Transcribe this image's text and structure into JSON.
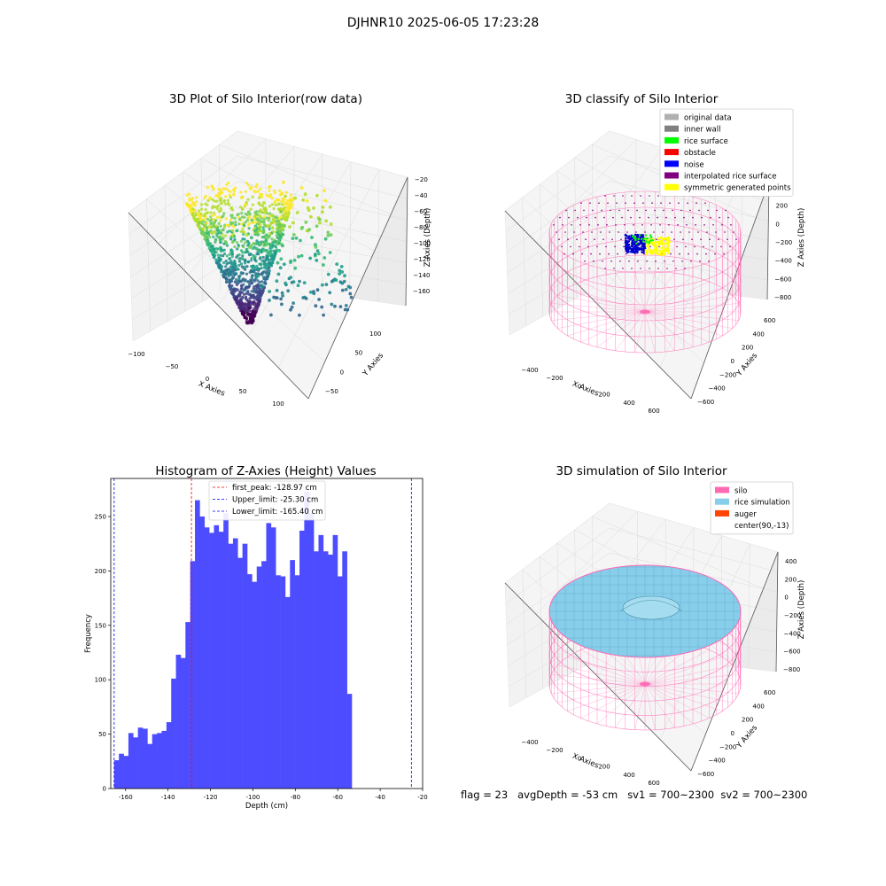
{
  "suptitle": "DJHNR10 2025-06-05 17:23:28",
  "footer": "flag = 23   avgDepth = -53 cm   sv1 = 700~2300  sv2 = 700~2300",
  "chart_data": [
    {
      "type": "scatter",
      "title": "3D Plot of Silo Interior(row data)",
      "xlabel": "X Axies",
      "ylabel": "Y Axies",
      "zlabel": "Z Axies (Depth)",
      "x_ticks": [
        "−100",
        "−50",
        "0",
        "50",
        "100"
      ],
      "y_ticks": [
        "−50",
        "0",
        "50",
        "100"
      ],
      "z_ticks": [
        "−20",
        "−40",
        "−60",
        "−80",
        "−100",
        "−120",
        "−140",
        "−160"
      ],
      "colormap": "viridis",
      "z_range": [
        -170,
        -20
      ]
    },
    {
      "type": "scatter",
      "title": "3D classify of Silo Interior",
      "xlabel": "X Axies",
      "ylabel": "Y Axies",
      "zlabel": "Z Axies (Depth)",
      "x_ticks": [
        "−400",
        "−200",
        "0",
        "200",
        "400",
        "600"
      ],
      "y_ticks": [
        "−600",
        "−400",
        "−200",
        "0",
        "200",
        "400",
        "600"
      ],
      "z_ticks": [
        "400",
        "200",
        "0",
        "−200",
        "−400",
        "−600",
        "−800"
      ],
      "legend": [
        {
          "label": "original data",
          "color": "#b0b0b0"
        },
        {
          "label": "inner wall",
          "color": "#808080"
        },
        {
          "label": "rice surface",
          "color": "#00ff00"
        },
        {
          "label": "obstacle",
          "color": "#ff0000"
        },
        {
          "label": "noise",
          "color": "#0000ff"
        },
        {
          "label": "interpolated rice surface",
          "color": "#800080"
        },
        {
          "label": "symmetric generated points",
          "color": "#ffff00"
        }
      ],
      "legend_loc": "upper right"
    },
    {
      "type": "bar",
      "title": "Histogram of Z-Axies (Height) Values",
      "xlabel": "Depth (cm)",
      "ylabel": "Frequency",
      "xlim": [
        -167,
        -20
      ],
      "ylim": [
        0,
        285
      ],
      "x_ticks": [
        -160,
        -140,
        -120,
        -100,
        -80,
        -60,
        -40,
        -20
      ],
      "y_ticks": [
        0,
        50,
        100,
        150,
        200,
        250
      ],
      "bin_start": -165.4,
      "bin_width": 2.24,
      "values": [
        26,
        32,
        30,
        51,
        47,
        56,
        55,
        41,
        50,
        51,
        53,
        61,
        101,
        123,
        120,
        153,
        209,
        265,
        250,
        240,
        235,
        242,
        236,
        253,
        225,
        230,
        212,
        225,
        197,
        190,
        204,
        209,
        244,
        240,
        196,
        195,
        176,
        210,
        196,
        237,
        273,
        253,
        218,
        233,
        218,
        215,
        233,
        195,
        218,
        87
      ],
      "bar_color": "#4d4dff",
      "lines": [
        {
          "label": "first_peak: -128.97 cm",
          "value": -128.97,
          "color": "#ff0000"
        },
        {
          "label": "Upper_limit: -25.30 cm",
          "value": -25.3,
          "color": "#0000ff"
        },
        {
          "label": "Lower_limit: -165.40 cm",
          "value": -165.4,
          "color": "#0000ff"
        }
      ]
    },
    {
      "type": "area",
      "title": "3D simulation of Silo Interior",
      "xlabel": "X Axies",
      "ylabel": "Y Axies",
      "zlabel": "Z Axies (Depth)",
      "x_ticks": [
        "−400",
        "−200",
        "0",
        "200",
        "400",
        "600"
      ],
      "y_ticks": [
        "−600",
        "−400",
        "−200",
        "0",
        "200",
        "400",
        "600"
      ],
      "z_ticks": [
        "400",
        "200",
        "0",
        "−200",
        "−400",
        "−600",
        "−800"
      ],
      "legend": [
        {
          "label": "silo",
          "color": "#ff69b4"
        },
        {
          "label": "rice simulation",
          "color": "#87ceeb"
        },
        {
          "label": "auger",
          "color": "#ff4500"
        },
        {
          "label": "center(90,-13)",
          "color": ""
        }
      ],
      "legend_loc": "upper right"
    }
  ]
}
